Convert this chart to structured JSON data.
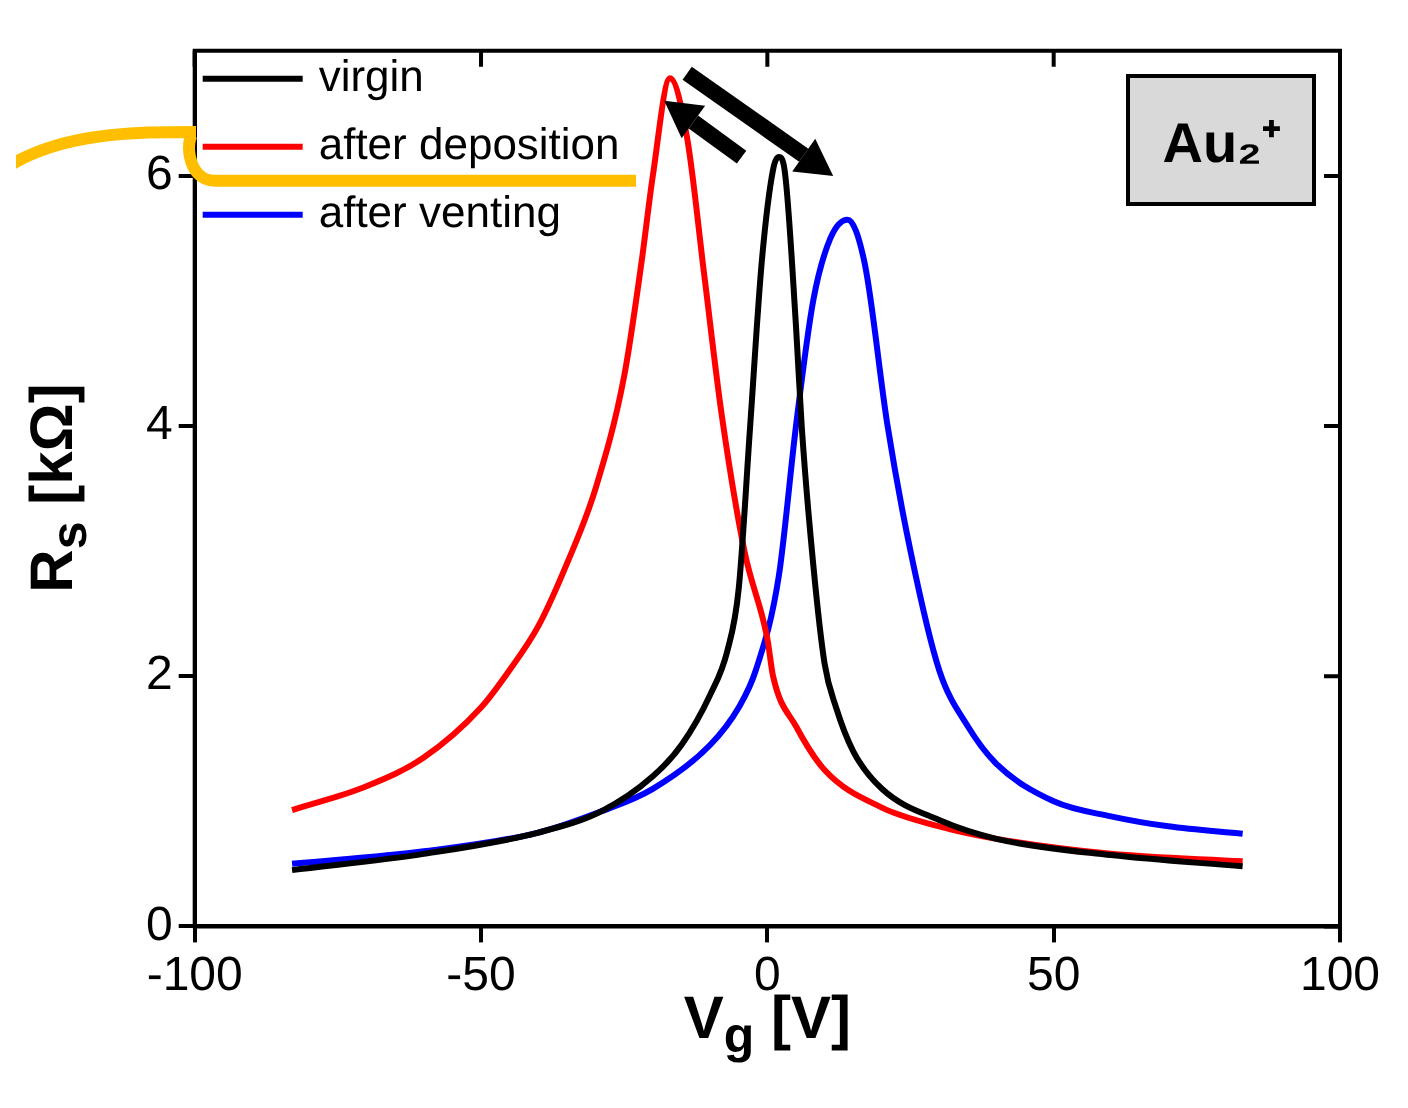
{
  "chart_data": {
    "type": "line",
    "xlabel": "V$_{g}$ [V]",
    "ylabel": "R$_{s}$ [kΩ]",
    "xlim": [
      -100,
      100
    ],
    "xticks": [
      -100,
      -50,
      0,
      50,
      100
    ],
    "ylim": [
      0,
      7
    ],
    "yticks": [
      0,
      2,
      4,
      6
    ],
    "grid": false,
    "legend": "top left",
    "marker": "none",
    "line_style": "solid",
    "annotations": [
      "Au₂⁺"
    ],
    "series": [
      {
        "name": "virgin",
        "color": "#000000",
        "x": [
          -83,
          -60,
          -40,
          -29,
          -20,
          -15,
          -10,
          -7,
          -5,
          -3,
          -1,
          1,
          2,
          3,
          5,
          6,
          8,
          10,
          12,
          15,
          20,
          30,
          40,
          60,
          83
        ],
        "values": [
          0.45,
          0.58,
          0.75,
          0.92,
          1.2,
          1.45,
          1.85,
          2.2,
          2.7,
          4.0,
          5.3,
          6.05,
          6.15,
          6.05,
          4.8,
          4.0,
          2.9,
          2.1,
          1.75,
          1.4,
          1.1,
          0.85,
          0.7,
          0.57,
          0.48
        ]
      },
      {
        "name": "after deposition",
        "color": "#ff0000",
        "x": [
          -83,
          -70,
          -60,
          -50,
          -45,
          -40,
          -35,
          -30,
          -25,
          -22,
          -20,
          -17,
          -14,
          -11,
          -8,
          -4,
          0,
          1,
          5,
          10,
          20,
          30,
          40,
          60,
          83
        ],
        "values": [
          0.93,
          1.12,
          1.35,
          1.75,
          2.05,
          2.4,
          2.9,
          3.5,
          4.4,
          5.3,
          6.0,
          6.78,
          6.3,
          5.2,
          4.1,
          3.0,
          2.3,
          2.0,
          1.6,
          1.25,
          0.95,
          0.8,
          0.7,
          0.58,
          0.52
        ]
      },
      {
        "name": "after venting",
        "color": "#0000ff",
        "x": [
          -83,
          -60,
          -40,
          -29,
          -20,
          -10,
          -5,
          -2,
          2,
          5,
          8,
          11,
          14,
          17,
          21,
          25,
          30,
          35,
          40,
          50,
          60,
          70,
          83
        ],
        "values": [
          0.5,
          0.6,
          0.75,
          0.92,
          1.1,
          1.45,
          1.75,
          2.05,
          2.8,
          4.0,
          5.0,
          5.5,
          5.65,
          5.3,
          4.0,
          3.0,
          2.05,
          1.6,
          1.3,
          1.0,
          0.88,
          0.8,
          0.74
        ]
      }
    ]
  }
}
